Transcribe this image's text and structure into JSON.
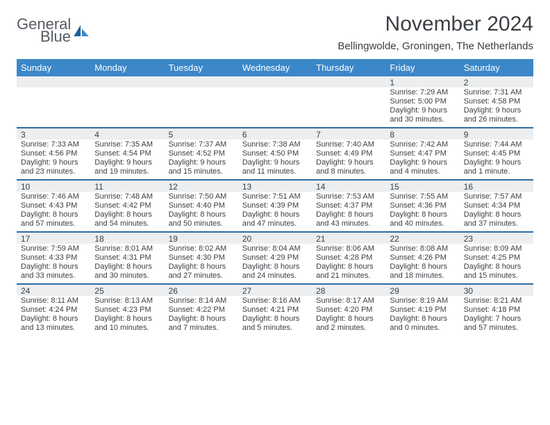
{
  "brand": {
    "part1": "General",
    "part2": "Blue"
  },
  "title": "November 2024",
  "location": "Bellingwolde, Groningen, The Netherlands",
  "colors": {
    "header_bg": "#3b87c8",
    "header_text": "#ffffff",
    "daynum_bg": "#eceeef",
    "week_divider": "#2e6ca4",
    "text": "#3a3f44",
    "logo_gray": "#555b62",
    "logo_blue": "#2f7ac2",
    "page_bg": "#ffffff"
  },
  "typography": {
    "title_fontsize": 30,
    "location_fontsize": 15,
    "weekday_fontsize": 13,
    "daynum_fontsize": 12,
    "cell_fontsize": 11
  },
  "weekdays": [
    "Sunday",
    "Monday",
    "Tuesday",
    "Wednesday",
    "Thursday",
    "Friday",
    "Saturday"
  ],
  "weeks": [
    [
      null,
      null,
      null,
      null,
      null,
      {
        "n": "1",
        "sr": "Sunrise: 7:29 AM",
        "ss": "Sunset: 5:00 PM",
        "d1": "Daylight: 9 hours",
        "d2": "and 30 minutes."
      },
      {
        "n": "2",
        "sr": "Sunrise: 7:31 AM",
        "ss": "Sunset: 4:58 PM",
        "d1": "Daylight: 9 hours",
        "d2": "and 26 minutes."
      }
    ],
    [
      {
        "n": "3",
        "sr": "Sunrise: 7:33 AM",
        "ss": "Sunset: 4:56 PM",
        "d1": "Daylight: 9 hours",
        "d2": "and 23 minutes."
      },
      {
        "n": "4",
        "sr": "Sunrise: 7:35 AM",
        "ss": "Sunset: 4:54 PM",
        "d1": "Daylight: 9 hours",
        "d2": "and 19 minutes."
      },
      {
        "n": "5",
        "sr": "Sunrise: 7:37 AM",
        "ss": "Sunset: 4:52 PM",
        "d1": "Daylight: 9 hours",
        "d2": "and 15 minutes."
      },
      {
        "n": "6",
        "sr": "Sunrise: 7:38 AM",
        "ss": "Sunset: 4:50 PM",
        "d1": "Daylight: 9 hours",
        "d2": "and 11 minutes."
      },
      {
        "n": "7",
        "sr": "Sunrise: 7:40 AM",
        "ss": "Sunset: 4:49 PM",
        "d1": "Daylight: 9 hours",
        "d2": "and 8 minutes."
      },
      {
        "n": "8",
        "sr": "Sunrise: 7:42 AM",
        "ss": "Sunset: 4:47 PM",
        "d1": "Daylight: 9 hours",
        "d2": "and 4 minutes."
      },
      {
        "n": "9",
        "sr": "Sunrise: 7:44 AM",
        "ss": "Sunset: 4:45 PM",
        "d1": "Daylight: 9 hours",
        "d2": "and 1 minute."
      }
    ],
    [
      {
        "n": "10",
        "sr": "Sunrise: 7:46 AM",
        "ss": "Sunset: 4:43 PM",
        "d1": "Daylight: 8 hours",
        "d2": "and 57 minutes."
      },
      {
        "n": "11",
        "sr": "Sunrise: 7:48 AM",
        "ss": "Sunset: 4:42 PM",
        "d1": "Daylight: 8 hours",
        "d2": "and 54 minutes."
      },
      {
        "n": "12",
        "sr": "Sunrise: 7:50 AM",
        "ss": "Sunset: 4:40 PM",
        "d1": "Daylight: 8 hours",
        "d2": "and 50 minutes."
      },
      {
        "n": "13",
        "sr": "Sunrise: 7:51 AM",
        "ss": "Sunset: 4:39 PM",
        "d1": "Daylight: 8 hours",
        "d2": "and 47 minutes."
      },
      {
        "n": "14",
        "sr": "Sunrise: 7:53 AM",
        "ss": "Sunset: 4:37 PM",
        "d1": "Daylight: 8 hours",
        "d2": "and 43 minutes."
      },
      {
        "n": "15",
        "sr": "Sunrise: 7:55 AM",
        "ss": "Sunset: 4:36 PM",
        "d1": "Daylight: 8 hours",
        "d2": "and 40 minutes."
      },
      {
        "n": "16",
        "sr": "Sunrise: 7:57 AM",
        "ss": "Sunset: 4:34 PM",
        "d1": "Daylight: 8 hours",
        "d2": "and 37 minutes."
      }
    ],
    [
      {
        "n": "17",
        "sr": "Sunrise: 7:59 AM",
        "ss": "Sunset: 4:33 PM",
        "d1": "Daylight: 8 hours",
        "d2": "and 33 minutes."
      },
      {
        "n": "18",
        "sr": "Sunrise: 8:01 AM",
        "ss": "Sunset: 4:31 PM",
        "d1": "Daylight: 8 hours",
        "d2": "and 30 minutes."
      },
      {
        "n": "19",
        "sr": "Sunrise: 8:02 AM",
        "ss": "Sunset: 4:30 PM",
        "d1": "Daylight: 8 hours",
        "d2": "and 27 minutes."
      },
      {
        "n": "20",
        "sr": "Sunrise: 8:04 AM",
        "ss": "Sunset: 4:29 PM",
        "d1": "Daylight: 8 hours",
        "d2": "and 24 minutes."
      },
      {
        "n": "21",
        "sr": "Sunrise: 8:06 AM",
        "ss": "Sunset: 4:28 PM",
        "d1": "Daylight: 8 hours",
        "d2": "and 21 minutes."
      },
      {
        "n": "22",
        "sr": "Sunrise: 8:08 AM",
        "ss": "Sunset: 4:26 PM",
        "d1": "Daylight: 8 hours",
        "d2": "and 18 minutes."
      },
      {
        "n": "23",
        "sr": "Sunrise: 8:09 AM",
        "ss": "Sunset: 4:25 PM",
        "d1": "Daylight: 8 hours",
        "d2": "and 15 minutes."
      }
    ],
    [
      {
        "n": "24",
        "sr": "Sunrise: 8:11 AM",
        "ss": "Sunset: 4:24 PM",
        "d1": "Daylight: 8 hours",
        "d2": "and 13 minutes."
      },
      {
        "n": "25",
        "sr": "Sunrise: 8:13 AM",
        "ss": "Sunset: 4:23 PM",
        "d1": "Daylight: 8 hours",
        "d2": "and 10 minutes."
      },
      {
        "n": "26",
        "sr": "Sunrise: 8:14 AM",
        "ss": "Sunset: 4:22 PM",
        "d1": "Daylight: 8 hours",
        "d2": "and 7 minutes."
      },
      {
        "n": "27",
        "sr": "Sunrise: 8:16 AM",
        "ss": "Sunset: 4:21 PM",
        "d1": "Daylight: 8 hours",
        "d2": "and 5 minutes."
      },
      {
        "n": "28",
        "sr": "Sunrise: 8:17 AM",
        "ss": "Sunset: 4:20 PM",
        "d1": "Daylight: 8 hours",
        "d2": "and 2 minutes."
      },
      {
        "n": "29",
        "sr": "Sunrise: 8:19 AM",
        "ss": "Sunset: 4:19 PM",
        "d1": "Daylight: 8 hours",
        "d2": "and 0 minutes."
      },
      {
        "n": "30",
        "sr": "Sunrise: 8:21 AM",
        "ss": "Sunset: 4:18 PM",
        "d1": "Daylight: 7 hours",
        "d2": "and 57 minutes."
      }
    ]
  ]
}
